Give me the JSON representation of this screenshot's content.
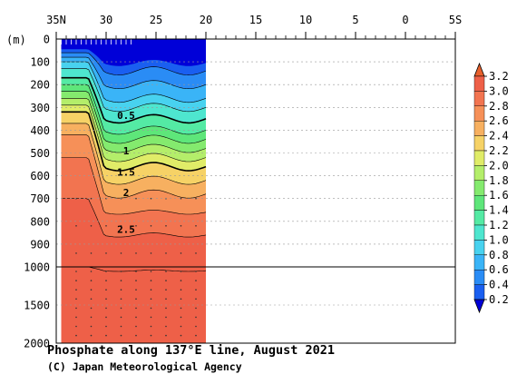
{
  "chart_data": {
    "type": "heatmap",
    "title": "Phosphate along 137°E line, August 2021",
    "credit": "(C) Japan Meteorological Agency",
    "x_axis": {
      "ticks": [
        "35N",
        "30",
        "25",
        "20",
        "15",
        "10",
        "5",
        "0",
        "5S"
      ],
      "tick_values": [
        35,
        30,
        25,
        20,
        15,
        10,
        5,
        0,
        -5
      ],
      "range": [
        35,
        -5
      ],
      "data_extent": [
        34.5,
        20
      ]
    },
    "y_axis": {
      "label": "(m)",
      "ticks_upper": [
        "0",
        "100",
        "200",
        "300",
        "400",
        "500",
        "600",
        "700",
        "800",
        "900",
        "1000"
      ],
      "ticks_lower": [
        "1500",
        "2000"
      ],
      "range": [
        0,
        2000
      ],
      "scale_break": 1000
    },
    "contour_labels": [
      {
        "text": "0.5",
        "lat": 28,
        "depth": 350
      },
      {
        "text": "1",
        "lat": 28,
        "depth": 505
      },
      {
        "text": "1.5",
        "lat": 28,
        "depth": 600
      },
      {
        "text": "2",
        "lat": 28,
        "depth": 690
      },
      {
        "text": "2.5",
        "lat": 28,
        "depth": 850
      }
    ],
    "colorbar": {
      "labels": [
        "0.2",
        "0.4",
        "0.6",
        "0.8",
        "1.0",
        "1.2",
        "1.4",
        "1.6",
        "1.8",
        "2.0",
        "2.2",
        "2.4",
        "2.6",
        "2.8",
        "3.0",
        "3.2"
      ],
      "colors": [
        "#0a2ee6",
        "#1a5ff0",
        "#2a8cf5",
        "#3ab4f7",
        "#48d2ef",
        "#4ee6cf",
        "#54eaa4",
        "#5ee67a",
        "#84ea6e",
        "#b4ee6a",
        "#e0ec68",
        "#f6d266",
        "#f7b060",
        "#f69058",
        "#f27450",
        "#ee6048",
        "#e84c40"
      ],
      "under_color": "#0000d8",
      "over_color": "#e8602c"
    }
  }
}
